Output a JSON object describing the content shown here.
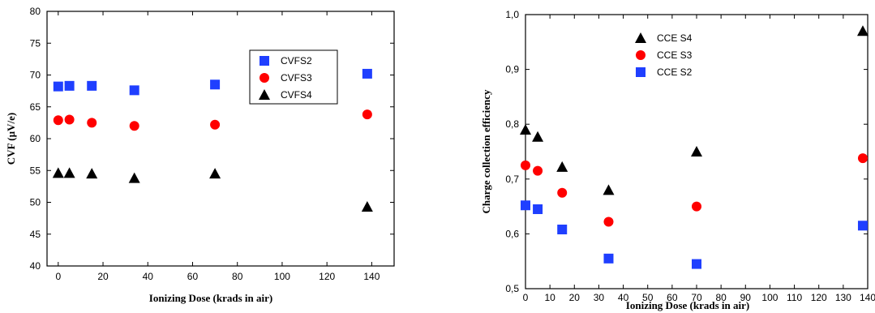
{
  "chart_data": [
    {
      "type": "scatter",
      "title": "",
      "xlabel": "Ionizing Dose (krads in air)",
      "ylabel": "CVF (µV/e)",
      "xlim": [
        -5,
        150
      ],
      "ylim": [
        40,
        80
      ],
      "xticks": [
        0,
        20,
        40,
        60,
        80,
        100,
        120,
        140
      ],
      "yticks": [
        40,
        45,
        50,
        55,
        60,
        65,
        70,
        75,
        80
      ],
      "legend_position": "upper-right",
      "grid": false,
      "series": [
        {
          "name": "CVFS2",
          "marker": "square",
          "color": "#1f3fff",
          "x": [
            0,
            5,
            15,
            34,
            70,
            138
          ],
          "y": [
            68.2,
            68.3,
            68.3,
            67.6,
            68.5,
            70.2
          ]
        },
        {
          "name": "CVFS3",
          "marker": "circle",
          "color": "#ff0000",
          "x": [
            0,
            5,
            15,
            34,
            70,
            138
          ],
          "y": [
            62.9,
            63.0,
            62.5,
            62.0,
            62.2,
            63.8
          ]
        },
        {
          "name": "CVFS4",
          "marker": "triangle",
          "color": "#000000",
          "x": [
            0,
            5,
            15,
            34,
            70,
            138
          ],
          "y": [
            54.6,
            54.6,
            54.5,
            53.8,
            54.5,
            49.3
          ]
        }
      ]
    },
    {
      "type": "scatter",
      "title": "",
      "xlabel": "Ionizing Dose (krads in air)",
      "ylabel": "Charge collection efficiency",
      "xlim": [
        0,
        140
      ],
      "ylim": [
        0.5,
        1.0
      ],
      "xticks": [
        0,
        10,
        20,
        30,
        40,
        50,
        60,
        70,
        80,
        90,
        100,
        110,
        120,
        130,
        140
      ],
      "yticks": [
        0.5,
        0.6,
        0.7,
        0.8,
        0.9,
        1.0
      ],
      "ytick_labels": [
        "0,5",
        "0,6",
        "0,7",
        "0,8",
        "0,9",
        "1,0"
      ],
      "legend_position": "upper-left",
      "grid": false,
      "series": [
        {
          "name": "CCE S4",
          "marker": "triangle",
          "color": "#000000",
          "x": [
            0,
            5,
            15,
            34,
            70,
            138
          ],
          "y": [
            0.79,
            0.777,
            0.722,
            0.68,
            0.75,
            0.97
          ]
        },
        {
          "name": "CCE S3",
          "marker": "circle",
          "color": "#ff0000",
          "x": [
            0,
            5,
            15,
            34,
            70,
            138
          ],
          "y": [
            0.725,
            0.715,
            0.675,
            0.622,
            0.65,
            0.738
          ]
        },
        {
          "name": "CCE S2",
          "marker": "square",
          "color": "#1f3fff",
          "x": [
            0,
            5,
            15,
            34,
            70,
            138
          ],
          "y": [
            0.652,
            0.645,
            0.608,
            0.555,
            0.545,
            0.615
          ]
        }
      ]
    }
  ]
}
